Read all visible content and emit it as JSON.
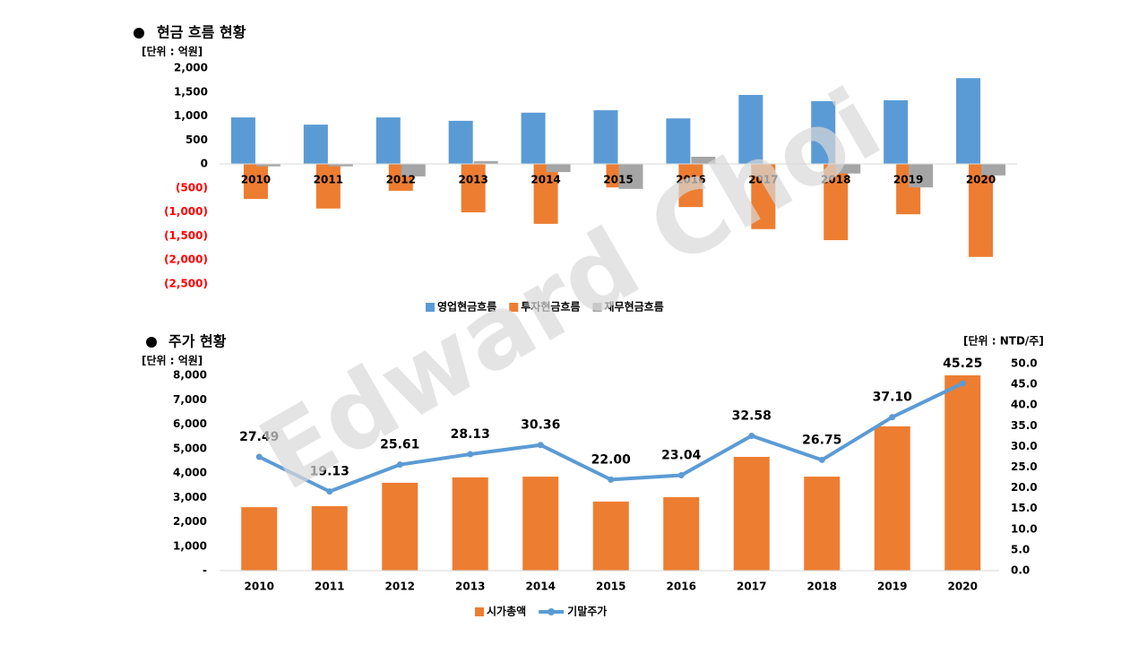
{
  "watermark": "Edward Choi",
  "chart_data": [
    {
      "type": "bar",
      "title": "현금 흐름 현황",
      "unit_label": "[단위 : 억원]",
      "legend": "bottom",
      "negative_tick_color": "#ff0000",
      "categories": [
        "2010",
        "2011",
        "2012",
        "2013",
        "2014",
        "2015",
        "2016",
        "2017",
        "2018",
        "2019",
        "2020"
      ],
      "series": [
        {
          "name": "영업현금흐름",
          "color": "#5b9bd5",
          "values": [
            970,
            820,
            970,
            900,
            1070,
            1120,
            950,
            1440,
            1310,
            1330,
            1790
          ]
        },
        {
          "name": "투자현금흐름",
          "color": "#ed7d31",
          "values": [
            -730,
            -930,
            -560,
            -1010,
            -1250,
            -490,
            -900,
            -1360,
            -1590,
            -1050,
            -1940
          ]
        },
        {
          "name": "재무현금흐름",
          "color": "#a5a5a5",
          "values": [
            -50,
            -50,
            -260,
            60,
            -170,
            -520,
            150,
            -10,
            -200,
            -490,
            -240
          ]
        }
      ],
      "ylim": [
        -2500,
        2000
      ],
      "yticks": [
        {
          "value": 2000,
          "label": "2,000"
        },
        {
          "value": 1500,
          "label": "1,500"
        },
        {
          "value": 1000,
          "label": "1,000"
        },
        500,
        0,
        {
          "value": -500,
          "label": "(500)"
        },
        {
          "value": -1000,
          "label": "(1,000)"
        },
        {
          "value": -1500,
          "label": "(1,500)"
        },
        {
          "value": -2000,
          "label": "(2,000)"
        },
        {
          "value": -2500,
          "label": "(2,500)"
        }
      ]
    },
    {
      "type": "combo",
      "title": "주가 현황",
      "unit_label": "[단위 : 억원]",
      "unit_label_y2": "[단위 : NTD/주]",
      "legend": "bottom",
      "categories": [
        "2010",
        "2011",
        "2012",
        "2013",
        "2014",
        "2015",
        "2016",
        "2017",
        "2018",
        "2019",
        "2020"
      ],
      "series": [
        {
          "name": "시가총액",
          "type": "bar",
          "color": "#ed7d31",
          "values": [
            2600,
            2640,
            3600,
            3820,
            3850,
            2830,
            3010,
            4660,
            3850,
            5910,
            8000
          ]
        },
        {
          "name": "기말주가",
          "type": "line",
          "axis": "y2",
          "color": "#5b9bd5",
          "values": [
            27.49,
            19.13,
            25.61,
            28.13,
            30.36,
            22,
            23.04,
            32.58,
            26.75,
            37.1,
            45.25
          ],
          "value_labels": [
            "27.49",
            "19.13",
            "25.61",
            "28.13",
            "30.36",
            "22.00",
            "23.04",
            "32.58",
            "26.75",
            "37.10",
            "45.25"
          ]
        }
      ],
      "ylim": [
        0,
        8000
      ],
      "yticks": [
        {
          "value": 0,
          "label": "-"
        },
        {
          "value": 1000,
          "label": "1,000"
        },
        {
          "value": 2000,
          "label": "2,000"
        },
        {
          "value": 3000,
          "label": "3,000"
        },
        {
          "value": 4000,
          "label": "4,000"
        },
        {
          "value": 5000,
          "label": "5,000"
        },
        {
          "value": 6000,
          "label": "6,000"
        },
        {
          "value": 7000,
          "label": "7,000"
        },
        {
          "value": 8000,
          "label": "8,000"
        }
      ],
      "y2lim": [
        0,
        50
      ],
      "y2ticks": [
        {
          "value": 0,
          "label": "0.0"
        },
        {
          "value": 5,
          "label": "5.0"
        },
        {
          "value": 10,
          "label": "10.0"
        },
        {
          "value": 15,
          "label": "15.0"
        },
        {
          "value": 20,
          "label": "20.0"
        },
        {
          "value": 25,
          "label": "25.0"
        },
        {
          "value": 30,
          "label": "30.0"
        },
        {
          "value": 35,
          "label": "35.0"
        },
        {
          "value": 40,
          "label": "40.0"
        },
        {
          "value": 45,
          "label": "45.0"
        },
        {
          "value": 50,
          "label": "50.0"
        }
      ]
    }
  ]
}
